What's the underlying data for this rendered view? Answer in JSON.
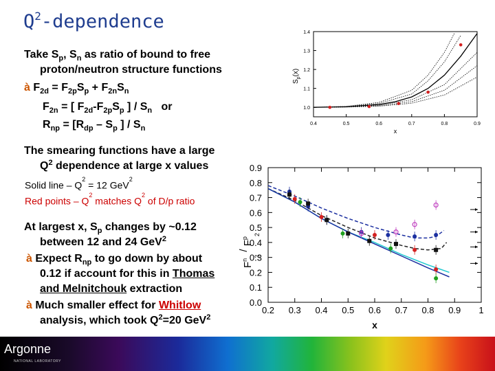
{
  "slide": {
    "title_base": "Q",
    "title_sup": "2",
    "title_rest": "-dependence",
    "p1": {
      "l1_a": "Take S",
      "l1_p": "p",
      "l1_b": ", S",
      "l1_n": "n",
      "l1_c": " as ratio of bound to free",
      "l2": "proton/neutron structure functions",
      "l3_arrow": "à ",
      "l3_a": "F",
      "l3_s1": "2d",
      "l3_b": " = F",
      "l3_s2": "2p",
      "l3_c": "S",
      "l3_s3": "p",
      "l3_d": " + F",
      "l3_s4": "2n",
      "l3_e": "S",
      "l3_s5": "n",
      "l4_a": "F",
      "l4_s1": "2n",
      "l4_b": " = [ F",
      "l4_s2": "2d",
      "l4_c": "-F",
      "l4_s3": "2p",
      "l4_d": "S",
      "l4_s4": "p",
      "l4_e": " ] / S",
      "l4_s5": "n",
      "l4_f": "   or",
      "l5_a": "R",
      "l5_s1": "np",
      "l5_b": " = [R",
      "l5_s2": "dp",
      "l5_c": " – S",
      "l5_s3": "p",
      "l5_d": " ] / S",
      "l5_s4": "n"
    },
    "p2": {
      "l1": "The smearing functions have a large",
      "l2_a": "Q",
      "l2_sup": "2",
      "l2_b": " dependence at large x values",
      "solid_a": "Solid line – Q",
      "solid_sup1": "2",
      "solid_b": " = 12 GeV",
      "solid_sup2": "2",
      "red_a": "Red points – Q",
      "red_sup1": "2",
      "red_b": " matches Q",
      "red_sup2": "2",
      "red_c": " of D/p ratio"
    },
    "p3": {
      "l1_a": "At largest x, S",
      "l1_s": "p",
      "l1_b": " changes by ~0.12",
      "l2_a": "between 12 and 24 GeV",
      "l2_sup": "2",
      "l3_arrow": "à ",
      "l3_a": "Expect R",
      "l3_s": "np",
      "l3_b": " to go down by about",
      "l4_a": "0.12 if account for this in ",
      "l4_link": "Thomas",
      "l5": "and Melnitchouk",
      "l5_b": " extraction",
      "l6_arrow": "à ",
      "l6_a": "Much smaller effect for ",
      "l6_link": "Whitlow",
      "l7_a": "analysis, which took Q",
      "l7_sup": "2",
      "l7_b": "=20 GeV",
      "l7_sup2": "2"
    },
    "footer": {
      "logo": "Argonne",
      "logo_sub": "NATIONAL LABORATORY"
    }
  },
  "chart_data": [
    {
      "type": "line",
      "xlabel": "x",
      "ylabel": "S",
      "ylabel_sub": "p",
      "ylabel_paren": "(x)",
      "xlim": [
        0.4,
        0.9
      ],
      "ylim": [
        0.95,
        1.4
      ],
      "xticks": [
        "0.4",
        "0.5",
        "0.6",
        "0.7",
        "0.8",
        "0.9"
      ],
      "yticks": [
        "1.0",
        "1.1",
        "1.2",
        "1.3",
        "1.4"
      ],
      "series": [
        {
          "style": "solid",
          "x": [
            0.4,
            0.5,
            0.6,
            0.65,
            0.7,
            0.75,
            0.8,
            0.85,
            0.9
          ],
          "y": [
            1.0,
            1.003,
            1.015,
            1.03,
            1.055,
            1.1,
            1.17,
            1.27,
            1.39
          ]
        },
        {
          "style": "dotted",
          "x": [
            0.4,
            0.5,
            0.6,
            0.7,
            0.75,
            0.8,
            0.85
          ],
          "y": [
            1.0,
            1.004,
            1.02,
            1.07,
            1.14,
            1.24,
            1.38
          ]
        },
        {
          "style": "dotted",
          "x": [
            0.4,
            0.5,
            0.6,
            0.7,
            0.75,
            0.8,
            0.83
          ],
          "y": [
            1.0,
            1.005,
            1.026,
            1.09,
            1.17,
            1.29,
            1.39
          ]
        },
        {
          "style": "dotted",
          "x": [
            0.4,
            0.5,
            0.6,
            0.7,
            0.8,
            0.9
          ],
          "y": [
            1.0,
            1.002,
            1.011,
            1.04,
            1.12,
            1.29
          ]
        },
        {
          "style": "dotted",
          "x": [
            0.4,
            0.5,
            0.6,
            0.7,
            0.8,
            0.9
          ],
          "y": [
            1.0,
            1.002,
            1.008,
            1.03,
            1.09,
            1.22
          ]
        },
        {
          "style": "dotted",
          "x": [
            0.4,
            0.5,
            0.6,
            0.7,
            0.8,
            0.9
          ],
          "y": [
            1.0,
            1.001,
            1.006,
            1.022,
            1.065,
            1.16
          ]
        }
      ],
      "points": {
        "color": "#d42020",
        "x": [
          0.45,
          0.57,
          0.66,
          0.75,
          0.85
        ],
        "y": [
          1.0,
          1.004,
          1.02,
          1.08,
          1.33
        ]
      }
    },
    {
      "type": "scatter",
      "xlabel": "x",
      "ylabel_top": "F",
      "ylabel_top_sup": "n",
      "ylabel_top_sub": "2",
      "ylabel_mid": " / ",
      "ylabel_bot": "F",
      "ylabel_bot_sup": "p",
      "ylabel_bot_sub": "2",
      "xlim": [
        0.2,
        1.0
      ],
      "ylim": [
        0.0,
        0.9
      ],
      "xticks": [
        "0.2",
        "0.3",
        "0.4",
        "0.5",
        "0.6",
        "0.7",
        "0.8",
        "0.9",
        "1"
      ],
      "yticks": [
        "0.0",
        "0.1",
        "0.2",
        "0.3",
        "0.4",
        "0.5",
        "0.6",
        "0.7",
        "0.8",
        "0.9"
      ],
      "lines": [
        {
          "color": "#1b2fa0",
          "style": "dashed",
          "x": [
            0.2,
            0.3,
            0.4,
            0.5,
            0.6,
            0.7,
            0.75,
            0.8,
            0.83,
            0.86
          ],
          "y": [
            0.78,
            0.71,
            0.63,
            0.56,
            0.5,
            0.45,
            0.43,
            0.43,
            0.44,
            0.48
          ]
        },
        {
          "color": "#222222",
          "style": "dashed",
          "x": [
            0.2,
            0.3,
            0.4,
            0.5,
            0.6,
            0.7,
            0.75,
            0.8,
            0.85,
            0.87
          ],
          "y": [
            0.76,
            0.68,
            0.58,
            0.5,
            0.43,
            0.38,
            0.36,
            0.35,
            0.36,
            0.4
          ]
        },
        {
          "color": "#20c8d0",
          "style": "solid",
          "x": [
            0.2,
            0.3,
            0.4,
            0.5,
            0.6,
            0.7,
            0.8,
            0.88
          ],
          "y": [
            0.76,
            0.67,
            0.56,
            0.47,
            0.4,
            0.32,
            0.25,
            0.2
          ]
        },
        {
          "color": "#1b2fa0",
          "style": "solid",
          "x": [
            0.2,
            0.3,
            0.4,
            0.5,
            0.6,
            0.7,
            0.8,
            0.88
          ],
          "y": [
            0.76,
            0.67,
            0.56,
            0.47,
            0.39,
            0.31,
            0.23,
            0.17
          ]
        }
      ],
      "series": [
        {
          "name": "",
          "color": "#1b2fa0",
          "marker": "circle",
          "x": [
            0.28,
            0.35,
            0.42,
            0.55,
            0.65,
            0.75,
            0.83
          ],
          "y": [
            0.74,
            0.64,
            0.55,
            0.47,
            0.45,
            0.44,
            0.45
          ]
        },
        {
          "name": "",
          "color": "#111111",
          "marker": "square",
          "x": [
            0.28,
            0.35,
            0.42,
            0.5,
            0.58,
            0.68,
            0.83
          ],
          "y": [
            0.72,
            0.66,
            0.55,
            0.46,
            0.41,
            0.39,
            0.35
          ]
        },
        {
          "name": "",
          "color": "#c040c0",
          "marker": "circle-open",
          "x": [
            0.55,
            0.68,
            0.75,
            0.83
          ],
          "y": [
            0.46,
            0.47,
            0.52,
            0.65
          ]
        },
        {
          "name": "",
          "color": "#d42020",
          "marker": "circle",
          "x": [
            0.3,
            0.4,
            0.6,
            0.75,
            0.83
          ],
          "y": [
            0.69,
            0.57,
            0.45,
            0.35,
            0.22
          ]
        },
        {
          "name": "",
          "color": "#20a020",
          "marker": "circle",
          "x": [
            0.32,
            0.48,
            0.66,
            0.83
          ],
          "y": [
            0.67,
            0.46,
            0.36,
            0.16
          ]
        }
      ],
      "arrows_at_y": [
        0.62,
        0.47,
        0.37,
        0.26
      ]
    }
  ]
}
